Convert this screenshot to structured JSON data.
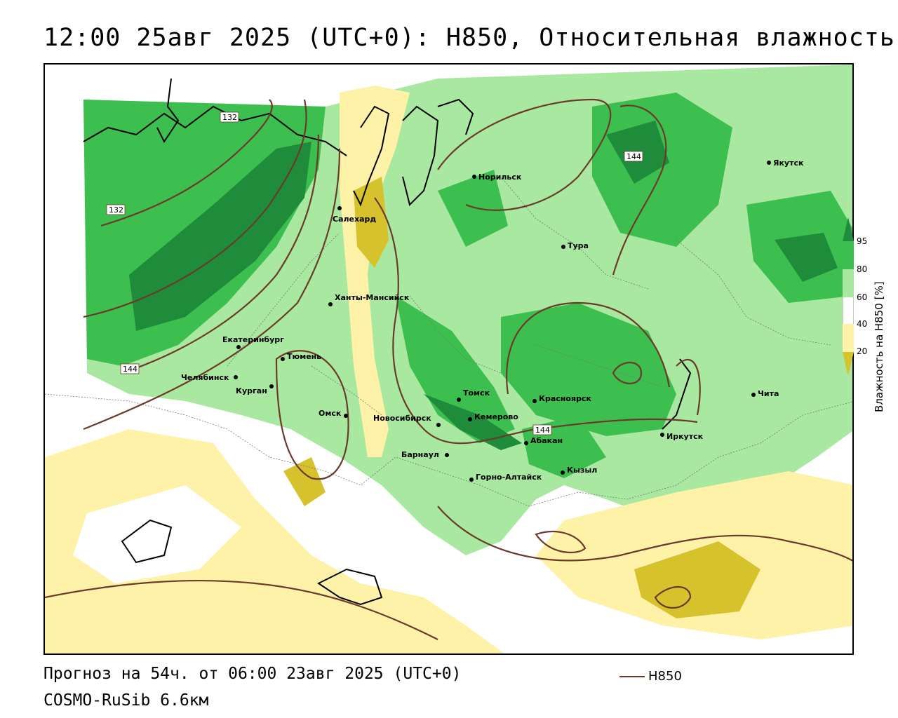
{
  "title": "12:00 25авг 2025 (UTC+0): H850, Относительная влажность",
  "footer": {
    "forecast": "Прогноз на 54ч. от 06:00 23авг 2025 (UTC+0)",
    "model": "COSMO-RuSib 6.6км"
  },
  "legend": {
    "line_label": "H850",
    "line_color": "#6b3a2a"
  },
  "colorbar": {
    "title": "Влажность на H850 [%]",
    "ticks": [
      "95",
      "80",
      "60",
      "40",
      "20"
    ],
    "colors": {
      "very_moist": "#1e8c3a",
      "moist": "#3cbf4f",
      "mid_moist": "#a8e8a0",
      "neutral": "#ffffff",
      "dry": "#fdf2a8",
      "very_dry": "#d6c22c"
    }
  },
  "cities": [
    {
      "name": "Норильск"
    },
    {
      "name": "Якутск"
    },
    {
      "name": "Салехард"
    },
    {
      "name": "Тура"
    },
    {
      "name": "Ханты-Мансийск"
    },
    {
      "name": "Екатеринбург"
    },
    {
      "name": "Тюмень"
    },
    {
      "name": "Челябинск"
    },
    {
      "name": "Курган"
    },
    {
      "name": "Омск"
    },
    {
      "name": "Томск"
    },
    {
      "name": "Красноярск"
    },
    {
      "name": "Новосибирск"
    },
    {
      "name": "Кемерово"
    },
    {
      "name": "Чита"
    },
    {
      "name": "Абакан"
    },
    {
      "name": "Барнаул"
    },
    {
      "name": "Иркутск"
    },
    {
      "name": "Кызыл"
    },
    {
      "name": "Горно-Алтайск"
    }
  ],
  "contour_labels": [
    "132",
    "132",
    "144",
    "144",
    "144"
  ]
}
